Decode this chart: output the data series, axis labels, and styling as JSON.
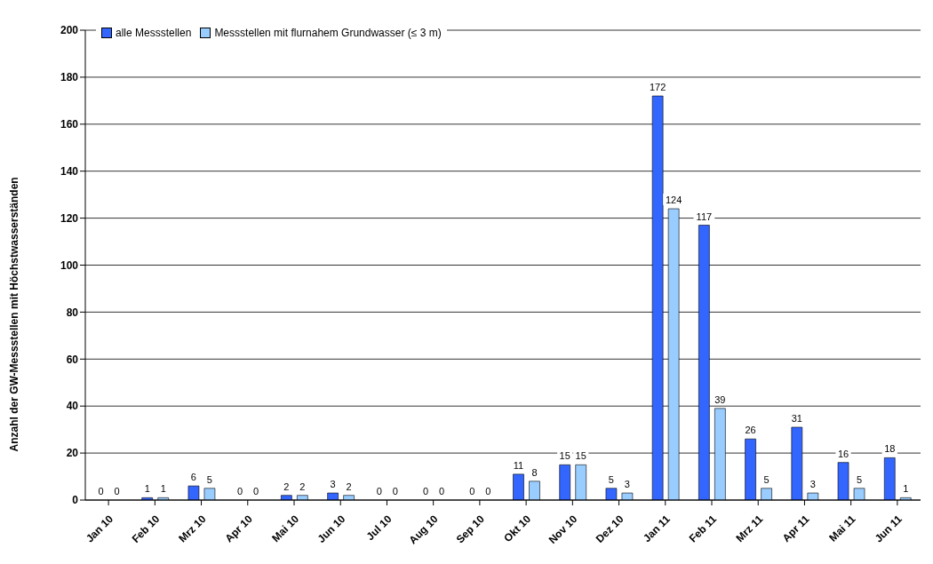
{
  "chart_data": {
    "type": "bar",
    "ylabel": "Anzahl der GW-Messstellen mit Höchstwasserständen",
    "categories": [
      "Jan 10",
      "Feb 10",
      "Mrz 10",
      "Apr 10",
      "Mai 10",
      "Jun 10",
      "Jul 10",
      "Aug 10",
      "Sep 10",
      "Okt 10",
      "Nov 10",
      "Dez 10",
      "Jan 11",
      "Feb 11",
      "Mrz 11",
      "Apr 11",
      "Mai 11",
      "Jun 11"
    ],
    "series": [
      {
        "name": "alle Messstellen",
        "color": "#3366ff",
        "values": [
          0,
          1,
          6,
          0,
          2,
          3,
          0,
          0,
          0,
          11,
          15,
          5,
          172,
          117,
          26,
          31,
          16,
          18
        ]
      },
      {
        "name": "Messstellen mit flurnahem Grundwasser (≤ 3 m)",
        "color": "#99ccff",
        "values": [
          0,
          1,
          5,
          0,
          2,
          2,
          0,
          0,
          0,
          8,
          15,
          3,
          124,
          39,
          5,
          3,
          5,
          1
        ]
      }
    ],
    "ylim": [
      0,
      200
    ],
    "yticks": [
      0,
      20,
      40,
      60,
      80,
      100,
      120,
      140,
      160,
      180,
      200
    ],
    "grid": "y",
    "legend": "top left",
    "data_labels": true
  }
}
